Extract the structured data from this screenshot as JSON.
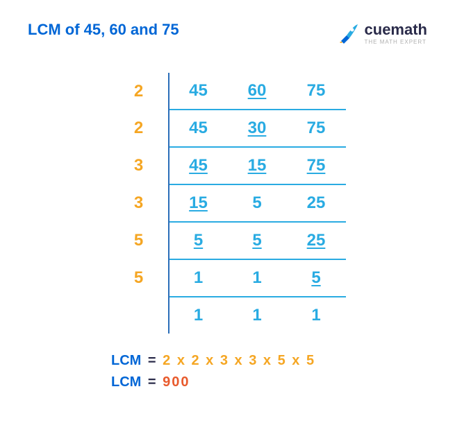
{
  "title": "LCM of 45, 60 and 75",
  "logo": {
    "brand": "cuemath",
    "tagline": "THE MATH EXPERT"
  },
  "colors": {
    "title": "#0066d6",
    "divisor": "#f5a623",
    "number": "#29abe2",
    "vline": "#2a6db8",
    "hline": "#29abe2",
    "lcm_label": "#0066d6",
    "factors": "#f5a623",
    "answer": "#e85a2c",
    "logo_text": "#2a2b4a"
  },
  "table": {
    "rows": [
      {
        "divisor": "2",
        "cells": [
          {
            "v": "45",
            "u": false
          },
          {
            "v": "60",
            "u": true
          },
          {
            "v": "75",
            "u": false
          }
        ]
      },
      {
        "divisor": "2",
        "cells": [
          {
            "v": "45",
            "u": false
          },
          {
            "v": "30",
            "u": true
          },
          {
            "v": "75",
            "u": false
          }
        ]
      },
      {
        "divisor": "3",
        "cells": [
          {
            "v": "45",
            "u": true
          },
          {
            "v": "15",
            "u": true
          },
          {
            "v": "75",
            "u": true
          }
        ]
      },
      {
        "divisor": "3",
        "cells": [
          {
            "v": "15",
            "u": true
          },
          {
            "v": "5",
            "u": false
          },
          {
            "v": "25",
            "u": false
          }
        ]
      },
      {
        "divisor": "5",
        "cells": [
          {
            "v": "5",
            "u": true
          },
          {
            "v": "5",
            "u": true
          },
          {
            "v": "25",
            "u": true
          }
        ]
      },
      {
        "divisor": "5",
        "cells": [
          {
            "v": "1",
            "u": false
          },
          {
            "v": "1",
            "u": false
          },
          {
            "v": "5",
            "u": true
          }
        ]
      },
      {
        "divisor": "",
        "cells": [
          {
            "v": "1",
            "u": false
          },
          {
            "v": "1",
            "u": false
          },
          {
            "v": "1",
            "u": false
          }
        ]
      }
    ]
  },
  "result": {
    "label": "LCM",
    "factors": "2 x 2 x 3 x 3 x 5 x 5",
    "answer": "900"
  },
  "fonts": {
    "title_pt": 22,
    "table_pt": 24,
    "result_pt": 20
  }
}
